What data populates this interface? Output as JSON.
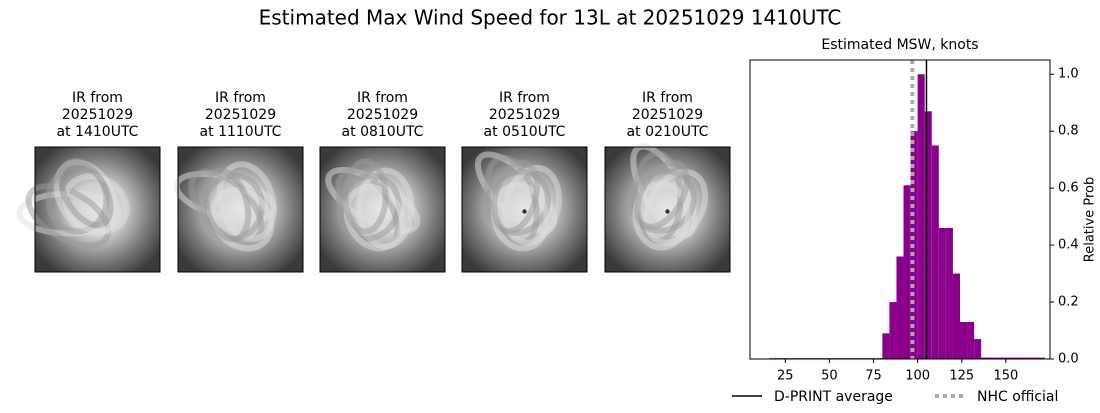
{
  "title": "Estimated Max Wind Speed for 13L at 20251029 1410UTC",
  "panels": [
    {
      "title": [
        "IR from",
        "20251029",
        "at 1410UTC"
      ]
    },
    {
      "title": [
        "IR from",
        "20251029",
        "at 1110UTC"
      ]
    },
    {
      "title": [
        "IR from",
        "20251029",
        "at 0810UTC"
      ]
    },
    {
      "title": [
        "IR from",
        "20251029",
        "at 0510UTC"
      ]
    },
    {
      "title": [
        "IR from",
        "20251029",
        "at 0210UTC"
      ]
    }
  ],
  "chart_data": {
    "type": "histogram",
    "title": "Estimated MSW, knots",
    "y_label": "Relative Prob",
    "color": "#8b008b",
    "bins": [
      16,
      20,
      24,
      28,
      32,
      36,
      40,
      44,
      48,
      52,
      56,
      60,
      64,
      68,
      72,
      76,
      80,
      84,
      88,
      92,
      96,
      100,
      104,
      108,
      112,
      116,
      120,
      124,
      128,
      132,
      136,
      140,
      144,
      148,
      152,
      156,
      160,
      164,
      168,
      172
    ],
    "values": [
      0.003,
      0.003,
      0.003,
      0.003,
      0.003,
      0.003,
      0.003,
      0.003,
      0.003,
      0.003,
      0.003,
      0.003,
      0.003,
      0.003,
      0.003,
      0.003,
      0.09,
      0.2,
      0.36,
      0.61,
      0.8,
      1.0,
      0.87,
      0.75,
      0.46,
      0.46,
      0.3,
      0.13,
      0.13,
      0.07,
      0.005,
      0.005,
      0.005,
      0.005,
      0.005,
      0.005,
      0.005,
      0.005,
      0.005
    ],
    "xlim": [
      5,
      175
    ],
    "ylim": [
      0,
      1.05
    ],
    "xticks": [
      25,
      50,
      75,
      100,
      125,
      150
    ],
    "yticks": [
      {
        "value": 0,
        "label": "0.0"
      },
      0.2,
      0.4,
      0.6,
      0.8,
      {
        "value": 1,
        "label": "1.0"
      }
    ],
    "lines": [
      {
        "name": "D-PRINT average",
        "value": 105,
        "color": "#000000",
        "style": "solid"
      },
      {
        "name": "NHC official",
        "value": 97,
        "color": "#aaaaaa",
        "style": "dotted"
      }
    ]
  }
}
